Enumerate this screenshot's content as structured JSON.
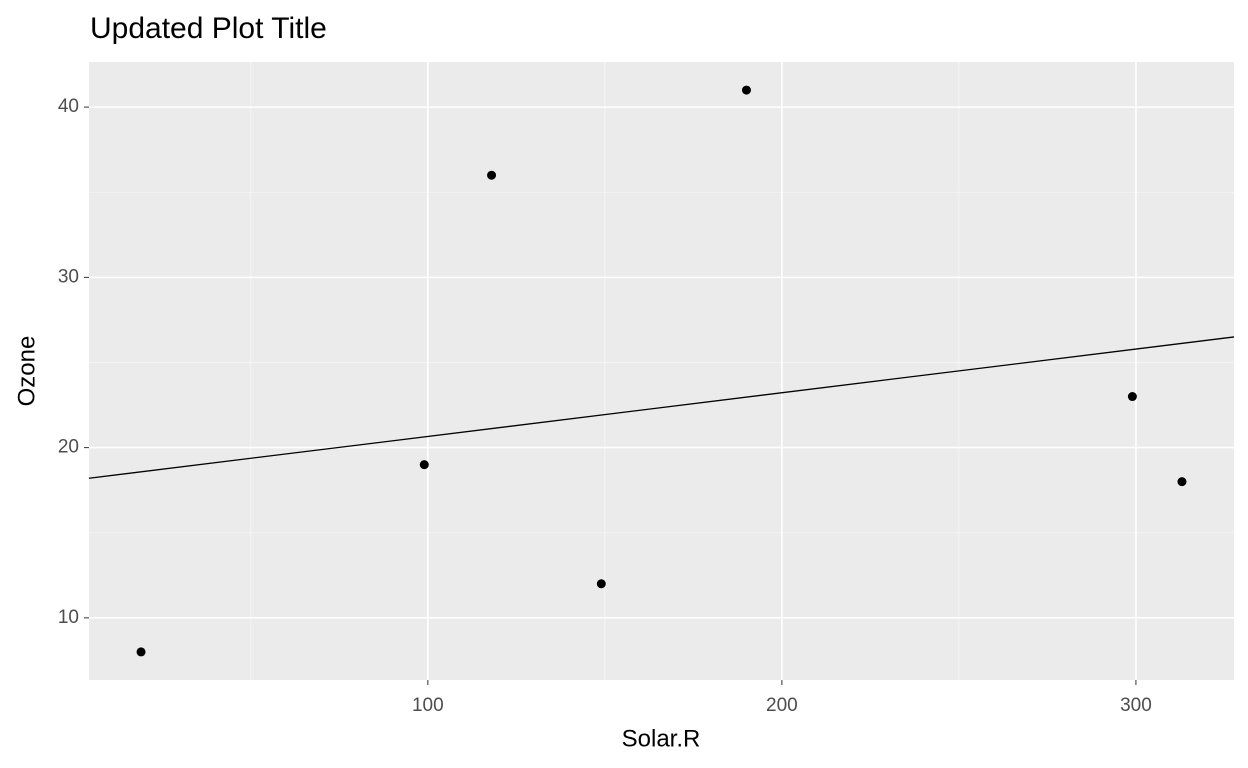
{
  "chart_data": {
    "type": "scatter",
    "title": "Updated Plot Title",
    "x_label": "Solar.R",
    "y_label": "Ozone",
    "x": [
      190,
      118,
      149,
      313,
      299,
      99,
      19
    ],
    "values": [
      41,
      36,
      12,
      18,
      23,
      19,
      8
    ],
    "color": "#000000",
    "trend_line": {
      "x": [
        4.3,
        327.7
      ],
      "values": [
        18.2,
        26.5
      ],
      "color": "#000000"
    },
    "xlim": [
      4.3,
      327.7
    ],
    "xticks": [
      100,
      200,
      300
    ],
    "x_minor_ticks": [
      50,
      150,
      250
    ],
    "ylim": [
      6.35,
      42.65
    ],
    "yticks": [
      10,
      20,
      30,
      40
    ],
    "y_minor_ticks": [
      15,
      25,
      35
    ],
    "grid": true
  }
}
